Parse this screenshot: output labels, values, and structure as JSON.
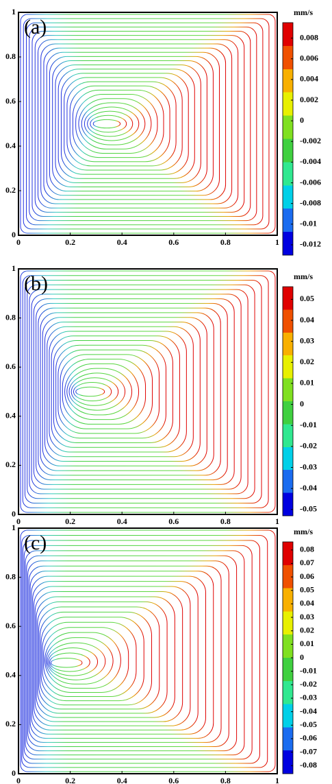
{
  "chart_data": [
    {
      "type": "streamline",
      "label": "(a)",
      "xlim": [
        0,
        1
      ],
      "ylim": [
        0,
        1
      ],
      "xticks": [
        0,
        0.2,
        0.4,
        0.6,
        0.8,
        1
      ],
      "yticks": [
        0,
        0.2,
        0.4,
        0.6,
        0.8,
        1
      ],
      "colorbar": {
        "title": "mm/s",
        "clim": [
          -0.013,
          0.0095
        ],
        "ticks": [
          0.008,
          0.006,
          0.004,
          0.002,
          0,
          -0.002,
          -0.004,
          -0.006,
          -0.008,
          -0.01,
          -0.012
        ],
        "colormap": [
          "#0000e0",
          "#1a6cf0",
          "#00d0e8",
          "#30e890",
          "#40d040",
          "#80e020",
          "#e8f000",
          "#f8b000",
          "#f05000",
          "#e00000"
        ]
      }
    },
    {
      "type": "streamline",
      "label": "(b)",
      "xlim": [
        0,
        1
      ],
      "ylim": [
        0,
        1
      ],
      "xticks": [
        0,
        0.2,
        0.4,
        0.6,
        0.8,
        1
      ],
      "yticks": [
        0,
        0.2,
        0.4,
        0.6,
        0.8,
        1
      ],
      "colorbar": {
        "title": "mm/s",
        "clim": [
          -0.053,
          0.056
        ],
        "ticks": [
          0.05,
          0.04,
          0.03,
          0.02,
          0.01,
          0,
          -0.01,
          -0.02,
          -0.03,
          -0.04,
          -0.05
        ],
        "colormap": [
          "#0000e0",
          "#1a6cf0",
          "#00d0e8",
          "#30e890",
          "#40d040",
          "#80e020",
          "#e8f000",
          "#f8b000",
          "#f05000",
          "#e00000"
        ]
      }
    },
    {
      "type": "streamline",
      "label": "(c)",
      "xlim": [
        0,
        1
      ],
      "ylim": [
        0,
        1
      ],
      "xticks": [
        0,
        0.2,
        0.4,
        0.6,
        0.8,
        1
      ],
      "yticks": [
        0,
        0.2,
        0.4,
        0.6,
        0.8,
        1
      ],
      "colorbar": {
        "title": "mm/s",
        "clim": [
          -0.086,
          0.086
        ],
        "ticks": [
          0.08,
          0.07,
          0.06,
          0.05,
          0.04,
          0.03,
          0.02,
          0.01,
          0,
          -0.01,
          -0.02,
          -0.03,
          -0.04,
          -0.05,
          -0.06,
          -0.07,
          -0.08
        ],
        "colormap": [
          "#0000e0",
          "#1a6cf0",
          "#00d0e8",
          "#30e890",
          "#40d040",
          "#80e020",
          "#e8f000",
          "#f8b000",
          "#f05000",
          "#e00000"
        ]
      }
    }
  ]
}
